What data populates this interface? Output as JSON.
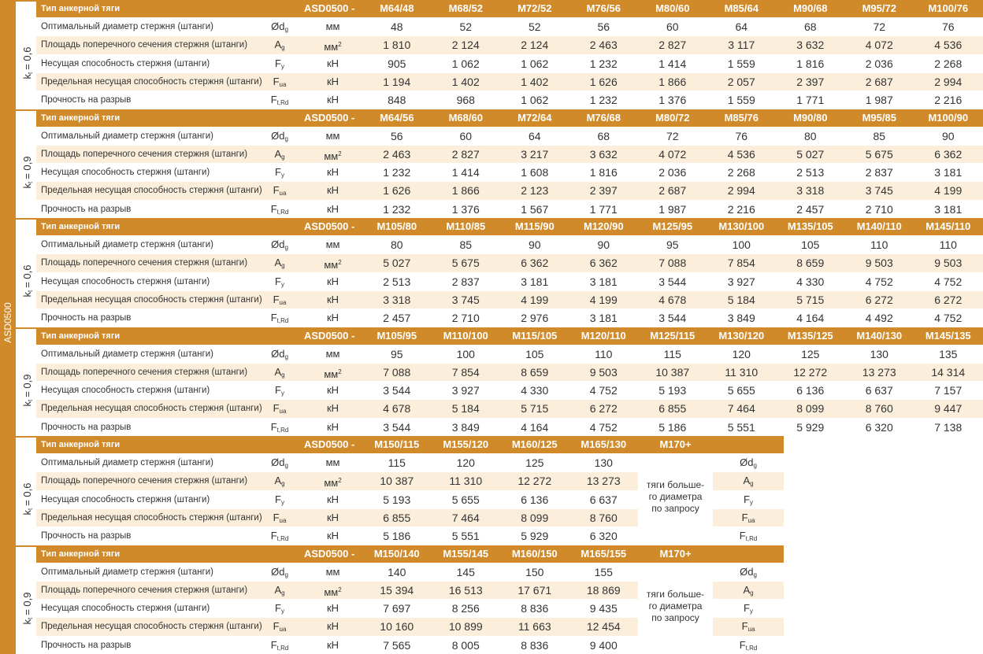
{
  "side_label": "ASD0500",
  "header_label": "Тип анкерной тяги",
  "header_series": "ASD0500 -",
  "k_symbol": "k",
  "k_sub": "t",
  "rows": [
    {
      "label": "Оптимальный диаметр стержня (штанги)",
      "symbol": "Ød",
      "sub": "g",
      "unit": "мм",
      "unit_sup": ""
    },
    {
      "label": "Площадь поперечного сечения стержня (штанги)",
      "symbol": "A",
      "sub": "g",
      "unit": "мм",
      "unit_sup": "2"
    },
    {
      "label": "Несущая способность стержня (штанги)",
      "symbol": "F",
      "sub": "y",
      "unit": "кН",
      "unit_sup": ""
    },
    {
      "label": "Предельная несущая способность стержня (штанги)",
      "symbol": "F",
      "sub": "ua",
      "unit": "кН",
      "unit_sup": ""
    },
    {
      "label": "Прочность на разрыв",
      "symbol": "F",
      "sub": "t,Rd",
      "unit": "кН",
      "unit_sup": ""
    }
  ],
  "blocks": [
    {
      "k_value": "= 0,6",
      "columns": [
        "M64/48",
        "M68/52",
        "M72/52",
        "M76/56",
        "M80/60",
        "M85/64",
        "M90/68",
        "M95/72",
        "M100/76"
      ],
      "values": [
        [
          "48",
          "52",
          "52",
          "56",
          "60",
          "64",
          "68",
          "72",
          "76"
        ],
        [
          "1 810",
          "2 124",
          "2 124",
          "2 463",
          "2 827",
          "3 117",
          "3 632",
          "4 072",
          "4 536"
        ],
        [
          "905",
          "1 062",
          "1 062",
          "1 232",
          "1 414",
          "1 559",
          "1 816",
          "2 036",
          "2 268"
        ],
        [
          "1 194",
          "1 402",
          "1 402",
          "1 626",
          "1 866",
          "2 057",
          "2 397",
          "2 687",
          "2 994"
        ],
        [
          "848",
          "968",
          "1 062",
          "1 232",
          "1 376",
          "1 559",
          "1 771",
          "1 987",
          "2 216"
        ]
      ]
    },
    {
      "k_value": "= 0,9",
      "columns": [
        "M64/56",
        "M68/60",
        "M72/64",
        "M76/68",
        "M80/72",
        "M85/76",
        "M90/80",
        "M95/85",
        "M100/90"
      ],
      "values": [
        [
          "56",
          "60",
          "64",
          "68",
          "72",
          "76",
          "80",
          "85",
          "90"
        ],
        [
          "2 463",
          "2 827",
          "3 217",
          "3 632",
          "4 072",
          "4 536",
          "5 027",
          "5 675",
          "6 362"
        ],
        [
          "1 232",
          "1 414",
          "1 608",
          "1 816",
          "2 036",
          "2 268",
          "2 513",
          "2 837",
          "3 181"
        ],
        [
          "1 626",
          "1 866",
          "2 123",
          "2 397",
          "2 687",
          "2 994",
          "3 318",
          "3 745",
          "4 199"
        ],
        [
          "1 232",
          "1 376",
          "1 567",
          "1 771",
          "1 987",
          "2 216",
          "2 457",
          "2 710",
          "3 181"
        ]
      ]
    },
    {
      "k_value": "= 0,6",
      "columns": [
        "M105/80",
        "M110/85",
        "M115/90",
        "M120/90",
        "M125/95",
        "M130/100",
        "M135/105",
        "M140/110",
        "M145/110"
      ],
      "values": [
        [
          "80",
          "85",
          "90",
          "90",
          "95",
          "100",
          "105",
          "110",
          "110"
        ],
        [
          "5 027",
          "5 675",
          "6 362",
          "6 362",
          "7 088",
          "7 854",
          "8 659",
          "9 503",
          "9 503"
        ],
        [
          "2 513",
          "2 837",
          "3 181",
          "3 181",
          "3 544",
          "3 927",
          "4 330",
          "4 752",
          "4 752"
        ],
        [
          "3 318",
          "3 745",
          "4 199",
          "4 199",
          "4 678",
          "5 184",
          "5 715",
          "6 272",
          "6 272"
        ],
        [
          "2 457",
          "2 710",
          "2 976",
          "3 181",
          "3 544",
          "3 849",
          "4 164",
          "4 492",
          "4 752"
        ]
      ]
    },
    {
      "k_value": "= 0,9",
      "columns": [
        "M105/95",
        "M110/100",
        "M115/105",
        "M120/110",
        "M125/115",
        "M130/120",
        "M135/125",
        "M140/130",
        "M145/135"
      ],
      "values": [
        [
          "95",
          "100",
          "105",
          "110",
          "115",
          "120",
          "125",
          "130",
          "135"
        ],
        [
          "7 088",
          "7 854",
          "8 659",
          "9 503",
          "10 387",
          "11 310",
          "12 272",
          "13 273",
          "14 314"
        ],
        [
          "3 544",
          "3 927",
          "4 330",
          "4 752",
          "5 193",
          "5 655",
          "6 136",
          "6 637",
          "7 157"
        ],
        [
          "4 678",
          "5 184",
          "5 715",
          "6 272",
          "6 855",
          "7 464",
          "8 099",
          "8 760",
          "9 447"
        ],
        [
          "3 544",
          "3 849",
          "4 164",
          "4 752",
          "5 186",
          "5 551",
          "5 929",
          "6 320",
          "7 138"
        ]
      ]
    },
    {
      "k_value": "= 0,6",
      "columns": [
        "M150/115",
        "M155/120",
        "M160/125",
        "M165/130"
      ],
      "values": [
        [
          "115",
          "120",
          "125",
          "130"
        ],
        [
          "10 387",
          "11 310",
          "12 272",
          "13 273"
        ],
        [
          "5 193",
          "5 655",
          "6 136",
          "6 637"
        ],
        [
          "6 855",
          "7 464",
          "8 099",
          "8 760"
        ],
        [
          "5 186",
          "5 551",
          "5 929",
          "6 320"
        ]
      ],
      "extra": {
        "header": "M170+",
        "note": [
          "тяги больше-",
          "го диаметра",
          "по запросу"
        ]
      }
    },
    {
      "k_value": "= 0,9",
      "columns": [
        "M150/140",
        "M155/145",
        "M160/150",
        "M165/155"
      ],
      "values": [
        [
          "140",
          "145",
          "150",
          "155"
        ],
        [
          "15 394",
          "16 513",
          "17 671",
          "18 869"
        ],
        [
          "7 697",
          "8 256",
          "8 836",
          "9 435"
        ],
        [
          "10 160",
          "10 899",
          "11 663",
          "12 454"
        ],
        [
          "7 565",
          "8 005",
          "8 836",
          "9 400"
        ]
      ],
      "extra": {
        "header": "M170+",
        "note": [
          "тяги больше-",
          "го диаметра",
          "по запросу"
        ]
      }
    }
  ]
}
